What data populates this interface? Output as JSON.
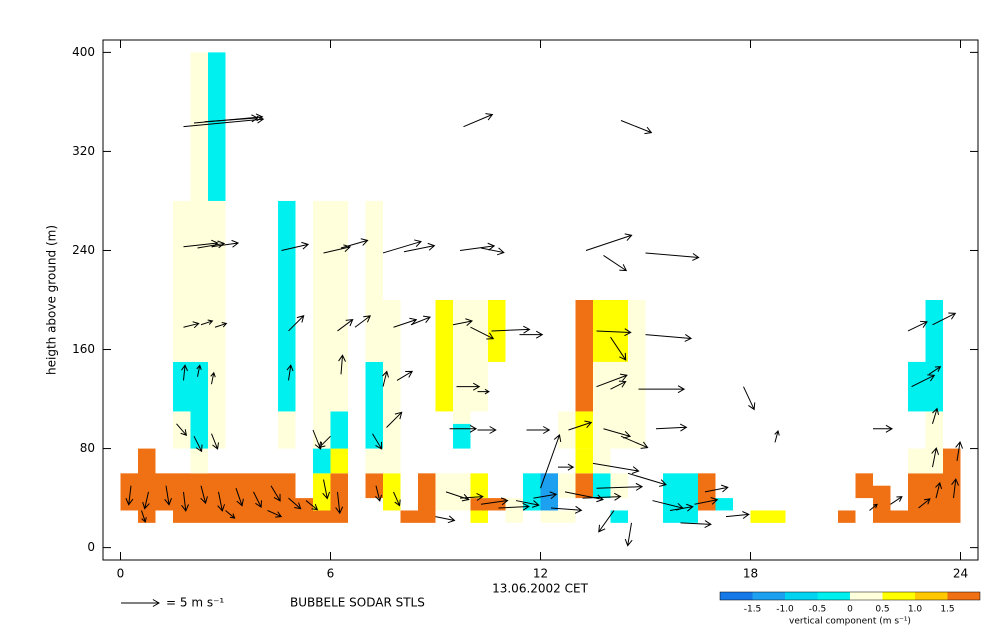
{
  "chart_data": {
    "type": "sodar",
    "y_label": "heigth above ground (m)",
    "x_label": "13.06.2002 CET",
    "station": "BUBBELE SODAR STLS",
    "xlim": [
      -0.5,
      24.5
    ],
    "xticks": [
      0,
      6,
      12,
      18,
      24
    ],
    "ylim": [
      -10,
      410
    ],
    "yticks": [
      0,
      80,
      160,
      240,
      320,
      400
    ],
    "reference": {
      "speed": 5,
      "label": "= 5 m s⁻¹"
    },
    "colorbar": {
      "label": "vertical component (m s⁻¹)",
      "bounds": [
        -2,
        -1.5,
        -1,
        -0.5,
        0,
        0.5,
        1,
        1.5,
        2
      ],
      "colors": [
        "#1478e6",
        "#1ea0f0",
        "#00d2f0",
        "#00f0f0",
        "#ffffdc",
        "#ffff00",
        "#ffc800",
        "#f07014"
      ],
      "ticks": [
        -1.5,
        {
          "value": -1,
          "label": "-1.0"
        },
        -0.5,
        0,
        0.5,
        {
          "value": 1,
          "label": "1.0"
        },
        1.5
      ]
    },
    "cells": [
      [
        0,
        0.5,
        30,
        60,
        1.8
      ],
      [
        0.5,
        1,
        20,
        80,
        1.8
      ],
      [
        1,
        1.5,
        30,
        60,
        1.8
      ],
      [
        1.5,
        2,
        20,
        60,
        1.8
      ],
      [
        1.5,
        2,
        80,
        110,
        0.2
      ],
      [
        1.5,
        2,
        110,
        150,
        -0.2
      ],
      [
        1.5,
        2,
        150,
        280,
        0.2
      ],
      [
        2,
        2.5,
        20,
        60,
        1.8
      ],
      [
        2,
        2.5,
        60,
        80,
        0.2
      ],
      [
        2,
        2.5,
        80,
        150,
        -0.2
      ],
      [
        2,
        2.5,
        150,
        400,
        0.2
      ],
      [
        2.5,
        3,
        20,
        60,
        1.8
      ],
      [
        2.5,
        3,
        80,
        280,
        0.2
      ],
      [
        2.5,
        3,
        280,
        400,
        -0.2
      ],
      [
        3,
        3.5,
        20,
        60,
        1.8
      ],
      [
        3.5,
        4,
        20,
        60,
        1.8
      ],
      [
        4,
        4.5,
        20,
        60,
        1.8
      ],
      [
        4.5,
        5,
        20,
        60,
        1.8
      ],
      [
        4.5,
        5,
        80,
        110,
        0.2
      ],
      [
        4.5,
        5,
        110,
        280,
        -0.2
      ],
      [
        5,
        5.5,
        20,
        40,
        1.8
      ],
      [
        5.5,
        6,
        20,
        30,
        1.8
      ],
      [
        5.5,
        6,
        30,
        60,
        0.7
      ],
      [
        5.5,
        6,
        60,
        80,
        -0.2
      ],
      [
        5.5,
        6,
        80,
        280,
        0.2
      ],
      [
        6,
        6.5,
        20,
        60,
        1.8
      ],
      [
        6,
        6.5,
        60,
        80,
        0.7
      ],
      [
        6,
        6.5,
        80,
        110,
        -0.2
      ],
      [
        6,
        6.5,
        110,
        280,
        0.2
      ],
      [
        7,
        7.5,
        40,
        60,
        1.8
      ],
      [
        7,
        7.5,
        60,
        80,
        0.2
      ],
      [
        7,
        7.5,
        80,
        150,
        -0.2
      ],
      [
        7,
        7.5,
        150,
        280,
        0.2
      ],
      [
        7.5,
        8,
        30,
        60,
        0.7
      ],
      [
        7.5,
        8,
        60,
        200,
        0.2
      ],
      [
        8,
        8.5,
        20,
        30,
        1.8
      ],
      [
        8.5,
        9,
        20,
        60,
        1.8
      ],
      [
        9,
        9.5,
        30,
        60,
        0.2
      ],
      [
        9,
        9.5,
        110,
        200,
        0.7
      ],
      [
        9.5,
        10,
        30,
        60,
        0.2
      ],
      [
        9.5,
        10,
        80,
        100,
        -0.2
      ],
      [
        9.5,
        10,
        100,
        200,
        0.2
      ],
      [
        10,
        10.5,
        20,
        30,
        0.7
      ],
      [
        10,
        10.5,
        30,
        40,
        1.8
      ],
      [
        10,
        10.5,
        40,
        60,
        0.7
      ],
      [
        10,
        10.5,
        110,
        200,
        0.2
      ],
      [
        10.5,
        11,
        30,
        40,
        1.8
      ],
      [
        10.5,
        11,
        150,
        200,
        0.7
      ],
      [
        11,
        11.5,
        20,
        40,
        0.2
      ],
      [
        11.5,
        12,
        30,
        60,
        -0.2
      ],
      [
        12,
        12.5,
        20,
        30,
        0.2
      ],
      [
        12,
        12.5,
        30,
        60,
        -1.2
      ],
      [
        12.5,
        13,
        20,
        30,
        0.2
      ],
      [
        12.5,
        13,
        40,
        60,
        0.2
      ],
      [
        12.5,
        13,
        80,
        110,
        0.2
      ],
      [
        13,
        13.5,
        40,
        60,
        1.8
      ],
      [
        13,
        13.5,
        60,
        80,
        0.7
      ],
      [
        13,
        13.5,
        80,
        110,
        0.7
      ],
      [
        13,
        13.5,
        110,
        200,
        1.8
      ],
      [
        13.5,
        14,
        40,
        60,
        -0.2
      ],
      [
        13.5,
        14,
        60,
        150,
        0.2
      ],
      [
        13.5,
        14,
        150,
        200,
        0.7
      ],
      [
        14,
        14.5,
        20,
        30,
        -0.2
      ],
      [
        14,
        14.5,
        40,
        60,
        0.2
      ],
      [
        14,
        14.5,
        80,
        150,
        0.2
      ],
      [
        14,
        14.5,
        150,
        200,
        0.7
      ],
      [
        14.5,
        15,
        80,
        200,
        0.2
      ],
      [
        15.5,
        16,
        20,
        60,
        -0.2
      ],
      [
        16,
        16.5,
        20,
        60,
        -0.2
      ],
      [
        16.5,
        17,
        30,
        60,
        1.8
      ],
      [
        17,
        17.5,
        30,
        40,
        -0.2
      ],
      [
        18,
        18.5,
        20,
        30,
        0.7
      ],
      [
        18.5,
        19,
        20,
        30,
        0.7
      ],
      [
        20.5,
        21,
        20,
        30,
        1.8
      ],
      [
        21,
        21.5,
        40,
        60,
        1.8
      ],
      [
        21.5,
        22,
        20,
        50,
        1.8
      ],
      [
        22,
        22.5,
        20,
        30,
        1.8
      ],
      [
        22.5,
        23,
        20,
        60,
        1.8
      ],
      [
        22.5,
        23,
        60,
        80,
        0.2
      ],
      [
        22.5,
        23,
        110,
        150,
        -0.2
      ],
      [
        23,
        23.5,
        20,
        60,
        1.8
      ],
      [
        23,
        23.5,
        60,
        110,
        0.2
      ],
      [
        23,
        23.5,
        110,
        200,
        -0.2
      ],
      [
        23.5,
        24,
        20,
        80,
        1.8
      ]
    ],
    "arrows": [
      [
        1.8,
        340,
        10.5,
        1
      ],
      [
        2.1,
        343,
        9,
        0.8
      ],
      [
        2.4,
        344,
        7,
        0.5
      ],
      [
        9.8,
        340,
        3.8,
        1.6
      ],
      [
        14.3,
        345,
        4,
        -1.6
      ],
      [
        1.8,
        243,
        4.5,
        0.5
      ],
      [
        2.2,
        242,
        3.5,
        0.6
      ],
      [
        2.6,
        243,
        3.5,
        0.5
      ],
      [
        4.6,
        240,
        3.5,
        0.8
      ],
      [
        5.8,
        238,
        3.5,
        0.8
      ],
      [
        6.3,
        242,
        3.5,
        1
      ],
      [
        7.5,
        238,
        5,
        1.5
      ],
      [
        8.1,
        239,
        4,
        0.8
      ],
      [
        9.7,
        240,
        4.5,
        0.6
      ],
      [
        10.3,
        242,
        3,
        -0.6
      ],
      [
        13.3,
        240,
        6,
        2
      ],
      [
        13.8,
        236,
        3,
        -2
      ],
      [
        15,
        238,
        7,
        -0.6
      ],
      [
        1.8,
        178,
        2,
        0.5
      ],
      [
        2.3,
        180,
        1.5,
        0.5
      ],
      [
        2.7,
        178,
        1.5,
        0.5
      ],
      [
        4.8,
        175,
        2,
        2
      ],
      [
        6.2,
        175,
        2,
        1.5
      ],
      [
        6.7,
        178,
        2,
        1.5
      ],
      [
        7.8,
        178,
        3,
        1
      ],
      [
        8.3,
        180,
        2.5,
        1
      ],
      [
        9.5,
        180,
        2.5,
        0.5
      ],
      [
        10,
        178,
        3,
        -1.5
      ],
      [
        10.6,
        175,
        5,
        0.2
      ],
      [
        11.4,
        172,
        3,
        0
      ],
      [
        13.6,
        175,
        4.5,
        -0.2
      ],
      [
        14,
        170,
        2,
        -3
      ],
      [
        15,
        172,
        6,
        -0.5
      ],
      [
        22.5,
        175,
        2.5,
        1.2
      ],
      [
        23.2,
        180,
        3,
        1.5
      ],
      [
        1.8,
        135,
        0.2,
        2
      ],
      [
        2.2,
        138,
        0.3,
        1.5
      ],
      [
        2.6,
        132,
        0.3,
        1.5
      ],
      [
        4.8,
        135,
        0.3,
        2
      ],
      [
        6.3,
        140,
        0.2,
        2.5
      ],
      [
        7.5,
        130,
        0.5,
        2
      ],
      [
        7.9,
        135,
        2,
        1.2
      ],
      [
        9.6,
        130,
        3,
        0
      ],
      [
        10.2,
        126,
        1.5,
        0
      ],
      [
        13.6,
        130,
        4,
        1.5
      ],
      [
        14,
        128,
        2,
        1
      ],
      [
        14.8,
        128,
        6,
        0
      ],
      [
        17.8,
        130,
        1.4,
        -3
      ],
      [
        22.6,
        130,
        3,
        1.5
      ],
      [
        23.1,
        140,
        1.5,
        1
      ],
      [
        1.6,
        100,
        1.3,
        -1.5
      ],
      [
        2.1,
        90,
        1,
        -2
      ],
      [
        2.6,
        92,
        0.8,
        -2
      ],
      [
        5.5,
        95,
        1,
        -2.5
      ],
      [
        6,
        90,
        -1.5,
        -1.5
      ],
      [
        7.2,
        92,
        1.2,
        -2
      ],
      [
        7.6,
        97,
        2,
        2
      ],
      [
        9.4,
        96,
        3.5,
        0
      ],
      [
        10.2,
        95,
        2.4,
        0
      ],
      [
        11.6,
        95,
        3,
        0
      ],
      [
        12.8,
        95,
        3,
        1
      ],
      [
        13.8,
        96,
        3.5,
        -1
      ],
      [
        14.3,
        90,
        3.5,
        -1.5
      ],
      [
        15.3,
        96,
        4,
        0.2
      ],
      [
        18.7,
        85,
        0.4,
        1.5
      ],
      [
        21.5,
        96,
        2.5,
        0
      ],
      [
        23.2,
        100,
        0.6,
        2
      ],
      [
        12,
        48,
        2.5,
        7
      ],
      [
        12.5,
        65,
        2,
        0
      ],
      [
        13.5,
        68,
        6,
        -1
      ],
      [
        14.5,
        60,
        5,
        -1.5
      ],
      [
        23.2,
        65,
        0.5,
        2.5
      ],
      [
        23.9,
        70,
        0.4,
        2.5
      ],
      [
        0.3,
        50,
        -0.3,
        -2.5
      ],
      [
        0.8,
        45,
        -0.5,
        -2.2
      ],
      [
        1.3,
        50,
        0.4,
        -2.5
      ],
      [
        1.8,
        45,
        0.3,
        -2.5
      ],
      [
        2.3,
        50,
        0.6,
        -2.3
      ],
      [
        2.8,
        45,
        0.5,
        -2.5
      ],
      [
        3.3,
        48,
        0.8,
        -2.3
      ],
      [
        3.8,
        45,
        1,
        -2
      ],
      [
        4.3,
        50,
        1.2,
        -2
      ],
      [
        4.8,
        40,
        1.6,
        -1.4
      ],
      [
        5.3,
        38,
        1.5,
        -1.2
      ],
      [
        5.8,
        55,
        0.5,
        -2.5
      ],
      [
        6.2,
        45,
        0.3,
        -2.8
      ],
      [
        7.3,
        50,
        0.5,
        -2
      ],
      [
        7.8,
        45,
        0.8,
        -1.8
      ],
      [
        9.3,
        45,
        3,
        -1
      ],
      [
        9.7,
        40,
        3,
        0.2
      ],
      [
        10.3,
        35,
        3.5,
        0.5
      ],
      [
        10.8,
        32,
        4,
        0.2
      ],
      [
        11.3,
        38,
        3,
        -0.6
      ],
      [
        11.8,
        40,
        3,
        0.5
      ],
      [
        12.3,
        32,
        4,
        -0.3
      ],
      [
        12.7,
        45,
        5,
        -1
      ],
      [
        13.2,
        40,
        5,
        0.2
      ],
      [
        13.6,
        48,
        6,
        0.2
      ],
      [
        14.1,
        30,
        -2,
        -2.8
      ],
      [
        14.6,
        20,
        -0.5,
        -3
      ],
      [
        15.2,
        38,
        4,
        -1
      ],
      [
        15.7,
        30,
        3,
        0.5
      ],
      [
        16.4,
        35,
        3,
        0.6
      ],
      [
        16.7,
        45,
        3,
        0.6
      ],
      [
        17.3,
        25,
        3,
        0.3
      ],
      [
        21.4,
        30,
        1,
        0.8
      ],
      [
        22,
        35,
        1.5,
        1
      ],
      [
        22.8,
        32,
        1.5,
        1.2
      ],
      [
        23.3,
        40,
        0.5,
        2
      ],
      [
        23.8,
        40,
        0.3,
        2.5
      ],
      [
        0.6,
        30,
        0.5,
        -1.5
      ],
      [
        3,
        30,
        1.2,
        -1
      ],
      [
        4.2,
        30,
        1.8,
        -0.8
      ],
      [
        9,
        25,
        2.5,
        -0.5
      ],
      [
        16,
        20,
        4,
        -0.2
      ]
    ]
  }
}
